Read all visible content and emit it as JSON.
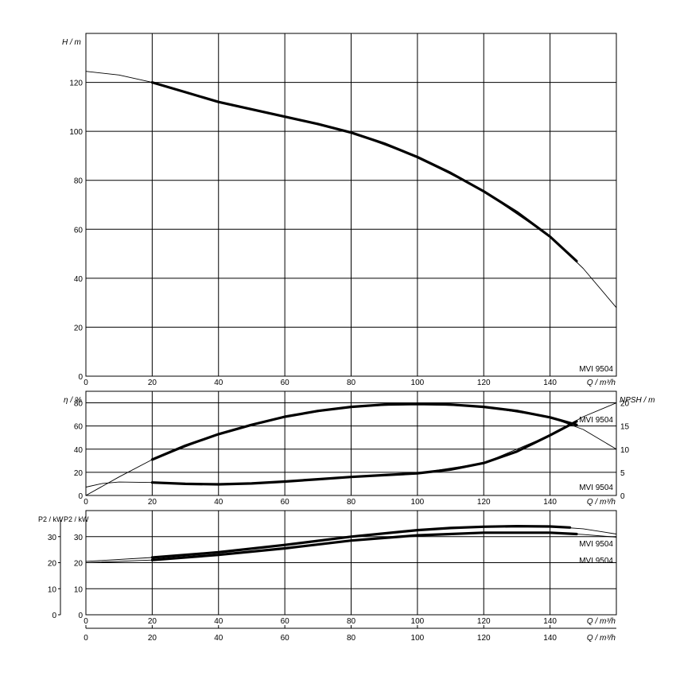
{
  "chart_data": [
    {
      "type": "line",
      "panel": "head",
      "ylabel": "H / m",
      "xlabel": "Q / m³/h",
      "xlim": [
        0,
        160
      ],
      "ylim": [
        0,
        140
      ],
      "y_ticks": [
        0,
        20,
        40,
        60,
        80,
        100,
        120
      ],
      "x_ticks": [
        0,
        20,
        40,
        60,
        80,
        100,
        120,
        140
      ],
      "grid": true,
      "model_label": "MVI 9504",
      "series": [
        {
          "role": "operating-range",
          "style": "thick",
          "x": [
            20,
            30,
            40,
            50,
            60,
            70,
            80,
            90,
            100,
            110,
            120,
            130,
            140,
            148
          ],
          "y": [
            120,
            116,
            112,
            109,
            106,
            103,
            99.5,
            95,
            89.5,
            83,
            75.5,
            67,
            57,
            47
          ]
        },
        {
          "role": "full-curve",
          "style": "thin",
          "x": [
            0,
            10,
            20,
            40,
            60,
            80,
            100,
            120,
            140,
            150,
            160
          ],
          "y": [
            124.5,
            123,
            120,
            112,
            106,
            99.5,
            89.5,
            75.5,
            57,
            44,
            28
          ]
        }
      ]
    },
    {
      "type": "line",
      "panel": "efficiency-npsh",
      "ylabel": "η / %",
      "y2label": "NPSH / m",
      "xlabel": "Q / m³/h",
      "xlim": [
        0,
        160
      ],
      "ylim": [
        0,
        90
      ],
      "y2lim": [
        0,
        22.5
      ],
      "y_ticks": [
        0,
        20,
        40,
        60,
        80
      ],
      "y2_ticks": [
        0,
        5,
        10,
        15,
        20
      ],
      "x_ticks": [
        0,
        20,
        40,
        60,
        80,
        100,
        120,
        140
      ],
      "grid": true,
      "model_label": "MVI 9504",
      "series": [
        {
          "role": "efficiency-operating-range",
          "style": "thick",
          "axis": "left",
          "x": [
            20,
            30,
            40,
            50,
            60,
            70,
            80,
            90,
            100,
            110,
            120,
            130,
            140,
            148
          ],
          "y": [
            31,
            43,
            53,
            61,
            68,
            73,
            76.5,
            78.5,
            79,
            78.5,
            76.5,
            73,
            67.5,
            61
          ]
        },
        {
          "role": "efficiency-full-curve",
          "style": "thin",
          "axis": "left",
          "x": [
            0,
            10,
            20,
            40,
            60,
            80,
            100,
            120,
            140,
            150,
            160
          ],
          "y": [
            0,
            16,
            31,
            53,
            68,
            76.5,
            79,
            76.5,
            67.5,
            57,
            40
          ]
        },
        {
          "role": "npsh-operating-range",
          "style": "thick",
          "axis": "right",
          "x": [
            20,
            30,
            40,
            50,
            60,
            70,
            80,
            90,
            100,
            110,
            120,
            130,
            140,
            148
          ],
          "y": [
            2.8,
            2.5,
            2.4,
            2.6,
            3.0,
            3.5,
            4.0,
            4.4,
            4.8,
            5.6,
            7.0,
            9.5,
            13.0,
            16.0
          ]
        },
        {
          "role": "npsh-full-curve",
          "style": "thin",
          "axis": "right",
          "x": [
            0,
            5,
            10,
            20,
            40,
            60,
            80,
            100,
            120,
            140,
            150,
            160
          ],
          "y": [
            1.8,
            2.6,
            2.9,
            2.8,
            2.4,
            3.0,
            4.0,
            4.8,
            7.0,
            13.0,
            17.0,
            20.0
          ]
        }
      ]
    },
    {
      "type": "line",
      "panel": "power",
      "ylabel_outer": "P2 / kW",
      "ylabel_inner": "P2 / kW",
      "xlabel": "Q / m³/h",
      "xlim": [
        0,
        160
      ],
      "ylim": [
        0,
        40
      ],
      "y_ticks": [
        0,
        10,
        20,
        30
      ],
      "x_ticks": [
        0,
        20,
        40,
        60,
        80,
        100,
        120,
        140
      ],
      "grid": true,
      "model_labels": [
        "MVI 9504",
        "MVI 9504"
      ],
      "series": [
        {
          "role": "power-upper-operating-range",
          "style": "thick",
          "x": [
            20,
            40,
            60,
            80,
            100,
            110,
            120,
            130,
            140,
            146
          ],
          "y": [
            22,
            24,
            26.8,
            30,
            32.5,
            33.3,
            33.8,
            34,
            33.9,
            33.5
          ]
        },
        {
          "role": "power-upper-full-curve",
          "style": "thin",
          "x": [
            0,
            20,
            40,
            60,
            80,
            100,
            120,
            140,
            150,
            160
          ],
          "y": [
            20.5,
            22,
            24,
            26.8,
            30,
            32.5,
            33.8,
            33.9,
            33,
            31
          ]
        },
        {
          "role": "power-lower-operating-range",
          "style": "thick",
          "x": [
            20,
            40,
            60,
            80,
            100,
            120,
            140,
            148
          ],
          "y": [
            21,
            23,
            25.5,
            28.5,
            30.5,
            31.5,
            31.5,
            31
          ]
        },
        {
          "role": "power-lower-full-curve",
          "style": "thin",
          "x": [
            0,
            20,
            40,
            60,
            80,
            100,
            120,
            140,
            150,
            160
          ],
          "y": [
            20,
            21,
            23,
            25.5,
            28.5,
            30.5,
            31.5,
            31.5,
            30.8,
            29.8
          ]
        }
      ]
    }
  ]
}
